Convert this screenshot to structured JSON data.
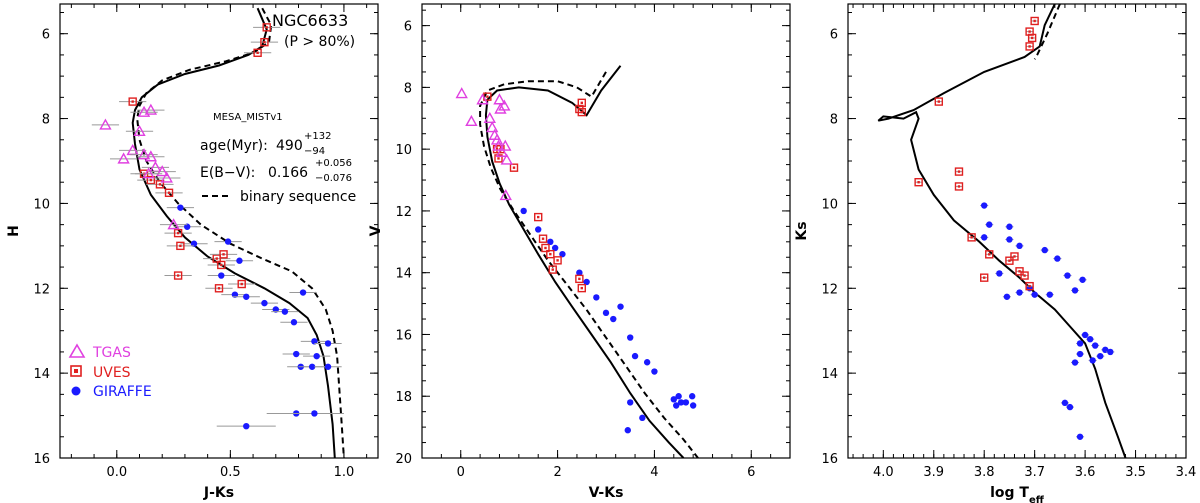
{
  "colors": {
    "tgas": "#e040e0",
    "uves": "#e02020",
    "giraffe": "#1a1aff",
    "isochrone": "#000000",
    "errorbar": "#999999"
  },
  "chart_data": [
    {
      "type": "scatter",
      "xlabel": "J-Ks",
      "ylabel": "H",
      "xlim": [
        -0.25,
        1.15
      ],
      "ylim": [
        16,
        5.3
      ],
      "xticks": [
        "0.0",
        "0.5",
        "1.0"
      ],
      "xtick_values": [
        0,
        0.5,
        1.0
      ],
      "yticks": [
        "6",
        "8",
        "10",
        "12",
        "14",
        "16"
      ],
      "ytick_values": [
        6,
        8,
        10,
        12,
        14,
        16
      ],
      "annotations": {
        "cluster": "NGC6633",
        "prob": "(P > 80%)",
        "model": "MESA_MISTv1",
        "age_label": "age(Myr):",
        "age_value": "490",
        "age_up": "+132",
        "age_down": "−94",
        "ebv_label": "E(B−V):",
        "ebv_value": "0.166",
        "ebv_up": "+0.056",
        "ebv_down": "−0.076",
        "binary_label": "binary sequence"
      },
      "legend": {
        "placement": "bottom-left",
        "entries": [
          "TGAS",
          "UVES",
          "GIRAFFE"
        ]
      },
      "isochrone": [
        [
          0.62,
          5.4
        ],
        [
          0.66,
          5.9
        ],
        [
          0.64,
          6.3
        ],
        [
          0.58,
          6.5
        ],
        [
          0.45,
          6.75
        ],
        [
          0.3,
          6.95
        ],
        [
          0.18,
          7.2
        ],
        [
          0.11,
          7.5
        ],
        [
          0.08,
          7.8
        ],
        [
          0.07,
          8.1
        ],
        [
          0.08,
          8.6
        ],
        [
          0.1,
          9.2
        ],
        [
          0.15,
          9.8
        ],
        [
          0.22,
          10.3
        ],
        [
          0.3,
          10.8
        ],
        [
          0.4,
          11.25
        ],
        [
          0.52,
          11.65
        ],
        [
          0.65,
          12.0
        ],
        [
          0.76,
          12.35
        ],
        [
          0.84,
          12.7
        ],
        [
          0.88,
          13.1
        ],
        [
          0.91,
          13.6
        ],
        [
          0.93,
          14.3
        ],
        [
          0.95,
          15.2
        ],
        [
          0.96,
          16.0
        ]
      ],
      "binary": [
        [
          0.64,
          5.4
        ],
        [
          0.68,
          5.8
        ],
        [
          0.67,
          6.2
        ],
        [
          0.6,
          6.45
        ],
        [
          0.48,
          6.65
        ],
        [
          0.32,
          6.85
        ],
        [
          0.2,
          7.1
        ],
        [
          0.13,
          7.4
        ],
        [
          0.1,
          7.7
        ],
        [
          0.09,
          8.0
        ],
        [
          0.1,
          8.5
        ],
        [
          0.13,
          9.0
        ],
        [
          0.19,
          9.5
        ],
        [
          0.27,
          10.0
        ],
        [
          0.37,
          10.5
        ],
        [
          0.5,
          10.95
        ],
        [
          0.64,
          11.3
        ],
        [
          0.77,
          11.6
        ],
        [
          0.86,
          12.0
        ],
        [
          0.92,
          12.5
        ],
        [
          0.95,
          13.0
        ],
        [
          0.97,
          13.6
        ],
        [
          0.98,
          14.4
        ],
        [
          0.99,
          15.2
        ],
        [
          1.0,
          16.0
        ]
      ],
      "tgas": [
        [
          -0.05,
          8.15
        ],
        [
          0.15,
          7.8
        ],
        [
          0.12,
          7.85
        ],
        [
          0.1,
          8.3
        ],
        [
          0.03,
          8.95
        ],
        [
          0.07,
          8.75
        ],
        [
          0.12,
          8.85
        ],
        [
          0.15,
          8.9
        ],
        [
          0.17,
          9.15
        ],
        [
          0.2,
          9.25
        ],
        [
          0.22,
          9.4
        ],
        [
          0.14,
          9.3
        ],
        [
          0.25,
          10.5
        ]
      ],
      "uves": [
        [
          0.07,
          7.6
        ],
        [
          0.12,
          9.3
        ],
        [
          0.15,
          9.45
        ],
        [
          0.19,
          9.55
        ],
        [
          0.23,
          9.75
        ],
        [
          0.27,
          10.7
        ],
        [
          0.28,
          11.0
        ],
        [
          0.27,
          11.7
        ],
        [
          0.44,
          11.3
        ],
        [
          0.47,
          11.2
        ],
        [
          0.46,
          11.45
        ],
        [
          0.45,
          12.0
        ],
        [
          0.55,
          11.9
        ],
        [
          0.65,
          6.2
        ],
        [
          0.66,
          5.85
        ],
        [
          0.62,
          6.45
        ]
      ],
      "giraffe": [
        [
          0.28,
          10.1
        ],
        [
          0.31,
          10.55
        ],
        [
          0.34,
          10.95
        ],
        [
          0.49,
          10.9
        ],
        [
          0.54,
          11.35
        ],
        [
          0.46,
          11.7
        ],
        [
          0.52,
          12.15
        ],
        [
          0.57,
          12.2
        ],
        [
          0.65,
          12.35
        ],
        [
          0.7,
          12.5
        ],
        [
          0.74,
          12.55
        ],
        [
          0.78,
          12.8
        ],
        [
          0.82,
          12.1
        ],
        [
          0.87,
          13.25
        ],
        [
          0.93,
          13.3
        ],
        [
          0.79,
          13.55
        ],
        [
          0.88,
          13.6
        ],
        [
          0.81,
          13.85
        ],
        [
          0.86,
          13.85
        ],
        [
          0.93,
          13.85
        ],
        [
          0.79,
          14.95
        ],
        [
          0.87,
          14.95
        ],
        [
          0.57,
          15.25
        ]
      ]
    },
    {
      "type": "scatter",
      "xlabel": "V-Ks",
      "ylabel": "V",
      "xlim": [
        -0.8,
        6.8
      ],
      "ylim": [
        20,
        5.3
      ],
      "xticks": [
        "0",
        "2",
        "4",
        "6"
      ],
      "xtick_values": [
        0,
        2,
        4,
        6
      ],
      "yticks": [
        "6",
        "8",
        "10",
        "12",
        "14",
        "16",
        "18",
        "20"
      ],
      "ytick_values": [
        6,
        8,
        10,
        12,
        14,
        16,
        18,
        20
      ],
      "isochrone": [
        [
          3.3,
          7.3
        ],
        [
          2.9,
          8.1
        ],
        [
          2.6,
          8.9
        ],
        [
          2.3,
          8.5
        ],
        [
          1.8,
          8.1
        ],
        [
          1.2,
          8.0
        ],
        [
          0.75,
          8.1
        ],
        [
          0.55,
          8.4
        ],
        [
          0.52,
          8.9
        ],
        [
          0.55,
          9.6
        ],
        [
          0.65,
          10.4
        ],
        [
          0.8,
          11.1
        ],
        [
          1.0,
          11.8
        ],
        [
          1.3,
          12.6
        ],
        [
          1.6,
          13.4
        ],
        [
          1.95,
          14.3
        ],
        [
          2.3,
          15.1
        ],
        [
          2.7,
          16.0
        ],
        [
          3.1,
          16.9
        ],
        [
          3.5,
          17.9
        ],
        [
          3.9,
          18.8
        ],
        [
          4.3,
          19.5
        ],
        [
          4.6,
          20.0
        ]
      ],
      "binary": [
        [
          3.0,
          7.5
        ],
        [
          2.7,
          8.3
        ],
        [
          2.4,
          8.0
        ],
        [
          2.0,
          7.8
        ],
        [
          1.4,
          7.8
        ],
        [
          0.9,
          7.9
        ],
        [
          0.55,
          8.1
        ],
        [
          0.4,
          8.6
        ],
        [
          0.4,
          9.2
        ],
        [
          0.48,
          9.9
        ],
        [
          0.62,
          10.6
        ],
        [
          0.82,
          11.3
        ],
        [
          1.1,
          12.0
        ],
        [
          1.45,
          12.8
        ],
        [
          1.8,
          13.6
        ],
        [
          2.2,
          14.4
        ],
        [
          2.6,
          15.2
        ],
        [
          3.0,
          16.1
        ],
        [
          3.4,
          17.0
        ],
        [
          3.8,
          17.9
        ],
        [
          4.2,
          18.7
        ],
        [
          4.6,
          19.4
        ],
        [
          4.9,
          20.0
        ]
      ],
      "tgas": [
        [
          0.02,
          8.2
        ],
        [
          0.22,
          9.1
        ],
        [
          0.45,
          8.4
        ],
        [
          0.6,
          9.0
        ],
        [
          0.65,
          9.3
        ],
        [
          0.7,
          9.55
        ],
        [
          0.75,
          9.7
        ],
        [
          0.82,
          8.7
        ],
        [
          0.78,
          9.9
        ],
        [
          0.92,
          9.9
        ],
        [
          0.85,
          10.1
        ],
        [
          0.95,
          10.35
        ],
        [
          0.93,
          11.5
        ],
        [
          0.8,
          8.4
        ],
        [
          0.9,
          8.6
        ]
      ],
      "uves": [
        [
          0.55,
          8.3
        ],
        [
          0.75,
          10.0
        ],
        [
          0.78,
          10.3
        ],
        [
          0.82,
          10.0
        ],
        [
          1.1,
          10.6
        ],
        [
          1.6,
          12.2
        ],
        [
          1.7,
          12.9
        ],
        [
          1.75,
          13.2
        ],
        [
          1.85,
          13.4
        ],
        [
          1.9,
          13.9
        ],
        [
          2.0,
          13.6
        ],
        [
          2.45,
          14.2
        ],
        [
          2.5,
          14.5
        ],
        [
          2.5,
          8.5
        ],
        [
          2.5,
          8.8
        ],
        [
          2.45,
          8.7
        ]
      ],
      "giraffe": [
        [
          1.3,
          12.0
        ],
        [
          1.6,
          12.6
        ],
        [
          1.85,
          13.0
        ],
        [
          1.95,
          13.2
        ],
        [
          2.1,
          13.4
        ],
        [
          2.45,
          14.0
        ],
        [
          2.6,
          14.3
        ],
        [
          2.8,
          14.8
        ],
        [
          3.0,
          15.3
        ],
        [
          3.15,
          15.5
        ],
        [
          3.3,
          15.1
        ],
        [
          3.5,
          16.1
        ],
        [
          3.6,
          16.7
        ],
        [
          3.85,
          16.9
        ],
        [
          4.0,
          17.2
        ],
        [
          4.4,
          18.1
        ],
        [
          4.45,
          18.3
        ],
        [
          4.5,
          18.0
        ],
        [
          4.55,
          18.2
        ],
        [
          4.65,
          18.2
        ],
        [
          4.78,
          18.0
        ],
        [
          4.8,
          18.3
        ],
        [
          3.5,
          18.2
        ],
        [
          3.75,
          18.7
        ],
        [
          3.45,
          19.1
        ]
      ]
    },
    {
      "type": "scatter",
      "xlabel": "log T",
      "xlabel_sub": "eff",
      "ylabel": "Ks",
      "xlim": [
        4.07,
        3.4
      ],
      "ylim": [
        16,
        5.3
      ],
      "xticks": [
        "4.0",
        "3.9",
        "3.8",
        "3.7",
        "3.6",
        "3.5",
        "3.4"
      ],
      "xtick_values": [
        4.0,
        3.9,
        3.8,
        3.7,
        3.6,
        3.5,
        3.4
      ],
      "yticks": [
        "6",
        "8",
        "10",
        "12",
        "14",
        "16"
      ],
      "ytick_values": [
        6,
        8,
        10,
        12,
        14,
        16
      ],
      "isochrone": [
        [
          3.66,
          5.3
        ],
        [
          3.68,
          5.8
        ],
        [
          3.69,
          6.3
        ],
        [
          3.72,
          6.55
        ],
        [
          3.8,
          6.9
        ],
        [
          3.88,
          7.4
        ],
        [
          3.94,
          7.8
        ],
        [
          3.99,
          8.0
        ],
        [
          4.01,
          8.05
        ],
        [
          4.0,
          7.95
        ],
        [
          3.96,
          8.0
        ],
        [
          3.935,
          7.85
        ],
        [
          3.93,
          8.0
        ],
        [
          3.945,
          8.5
        ],
        [
          3.93,
          9.2
        ],
        [
          3.9,
          9.8
        ],
        [
          3.86,
          10.4
        ],
        [
          3.81,
          10.9
        ],
        [
          3.77,
          11.35
        ],
        [
          3.73,
          11.75
        ],
        [
          3.7,
          12.1
        ],
        [
          3.66,
          12.5
        ],
        [
          3.63,
          12.9
        ],
        [
          3.6,
          13.3
        ],
        [
          3.58,
          13.9
        ],
        [
          3.56,
          14.7
        ],
        [
          3.535,
          15.5
        ],
        [
          3.52,
          16.0
        ]
      ],
      "binary": [
        [
          3.65,
          5.3
        ],
        [
          3.675,
          6.0
        ],
        [
          3.695,
          6.5
        ],
        [
          3.7,
          6.6
        ]
      ],
      "uves": [
        [
          3.7,
          5.7
        ],
        [
          3.71,
          5.95
        ],
        [
          3.705,
          6.1
        ],
        [
          3.71,
          6.3
        ],
        [
          3.89,
          7.6
        ],
        [
          3.93,
          9.5
        ],
        [
          3.85,
          9.25
        ],
        [
          3.85,
          9.6
        ],
        [
          3.825,
          10.8
        ],
        [
          3.8,
          11.75
        ],
        [
          3.79,
          11.2
        ],
        [
          3.75,
          11.35
        ],
        [
          3.74,
          11.25
        ],
        [
          3.73,
          11.6
        ],
        [
          3.72,
          11.7
        ],
        [
          3.71,
          11.95
        ]
      ],
      "giraffe": [
        [
          3.8,
          10.05
        ],
        [
          3.79,
          10.5
        ],
        [
          3.75,
          10.55
        ],
        [
          3.8,
          10.8
        ],
        [
          3.75,
          10.85
        ],
        [
          3.73,
          11.0
        ],
        [
          3.68,
          11.1
        ],
        [
          3.655,
          11.3
        ],
        [
          3.635,
          11.7
        ],
        [
          3.605,
          11.8
        ],
        [
          3.62,
          12.05
        ],
        [
          3.67,
          12.15
        ],
        [
          3.7,
          12.15
        ],
        [
          3.71,
          12.0
        ],
        [
          3.73,
          12.1
        ],
        [
          3.755,
          12.2
        ],
        [
          3.77,
          11.65
        ],
        [
          3.6,
          13.1
        ],
        [
          3.59,
          13.2
        ],
        [
          3.61,
          13.3
        ],
        [
          3.58,
          13.35
        ],
        [
          3.56,
          13.45
        ],
        [
          3.55,
          13.5
        ],
        [
          3.57,
          13.6
        ],
        [
          3.585,
          13.7
        ],
        [
          3.61,
          13.55
        ],
        [
          3.62,
          13.75
        ],
        [
          3.64,
          14.7
        ],
        [
          3.63,
          14.8
        ],
        [
          3.61,
          15.5
        ]
      ]
    }
  ]
}
